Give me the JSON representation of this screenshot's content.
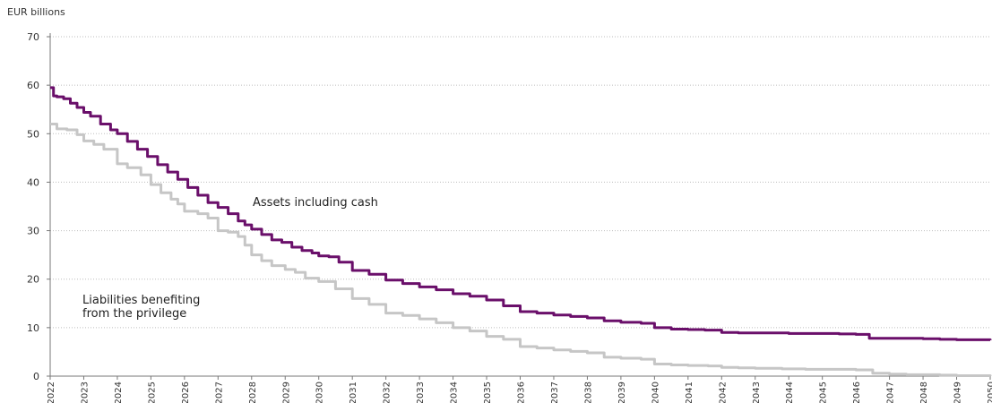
{
  "chart_data": {
    "type": "line",
    "title": "",
    "unit_label": "EUR billions",
    "xlabel": "",
    "ylabel": "",
    "ylim": [
      0,
      70
    ],
    "yticks": [
      0,
      10,
      20,
      30,
      40,
      50,
      60,
      70
    ],
    "xlim": [
      2022,
      2050
    ],
    "xticks": [
      "2022",
      "2023",
      "2024",
      "2025",
      "2026",
      "2027",
      "2028",
      "2029",
      "2030",
      "2031",
      "2032",
      "2033",
      "2034",
      "2035",
      "2036",
      "2037",
      "2038",
      "2039",
      "2040",
      "2041",
      "2042",
      "2043",
      "2044",
      "2045",
      "2046",
      "2047",
      "2048",
      "2049",
      "2050"
    ],
    "grid": "horizontal-dotted",
    "legend": "none",
    "series": [
      {
        "name": "Assets including cash",
        "color": "#6a0f6a",
        "x": [
          2022.0,
          2022.1,
          2022.2,
          2022.4,
          2022.6,
          2022.8,
          2023.0,
          2023.2,
          2023.5,
          2023.8,
          2024.0,
          2024.3,
          2024.6,
          2024.9,
          2025.2,
          2025.5,
          2025.8,
          2026.1,
          2026.4,
          2026.7,
          2027.0,
          2027.3,
          2027.6,
          2027.8,
          2028.0,
          2028.3,
          2028.6,
          2028.9,
          2029.2,
          2029.5,
          2029.8,
          2030.0,
          2030.3,
          2030.6,
          2031.0,
          2031.5,
          2032.0,
          2032.5,
          2033.0,
          2033.5,
          2034.0,
          2034.5,
          2035.0,
          2035.5,
          2036.0,
          2036.5,
          2037.0,
          2037.5,
          2038.0,
          2038.5,
          2039.0,
          2039.6,
          2040.0,
          2040.5,
          2041.0,
          2041.5,
          2042.0,
          2042.5,
          2043.0,
          2044.0,
          2045.0,
          2045.5,
          2046.0,
          2046.4,
          2047.0,
          2048.0,
          2048.5,
          2049.0,
          2050.0
        ],
        "y": [
          59.5,
          57.8,
          57.6,
          57.2,
          56.3,
          55.4,
          54.4,
          53.6,
          52.0,
          50.8,
          50.0,
          48.4,
          46.8,
          45.3,
          43.6,
          42.1,
          40.6,
          38.9,
          37.3,
          35.8,
          34.8,
          33.5,
          32.0,
          31.2,
          30.3,
          29.2,
          28.1,
          27.6,
          26.6,
          25.9,
          25.4,
          24.8,
          24.6,
          23.5,
          21.8,
          21.0,
          19.8,
          19.1,
          18.4,
          17.8,
          17.0,
          16.5,
          15.7,
          14.5,
          13.3,
          13.0,
          12.6,
          12.3,
          12.0,
          11.4,
          11.1,
          10.9,
          10.0,
          9.7,
          9.6,
          9.5,
          9.0,
          8.9,
          8.9,
          8.8,
          8.8,
          8.7,
          8.6,
          7.8,
          7.8,
          7.7,
          7.6,
          7.5,
          7.4
        ]
      },
      {
        "name": "Liabilities benefiting from the privilege",
        "color": "#c6c6c6",
        "x": [
          2022.0,
          2022.2,
          2022.5,
          2022.8,
          2023.0,
          2023.3,
          2023.6,
          2024.0,
          2024.3,
          2024.7,
          2025.0,
          2025.3,
          2025.6,
          2025.8,
          2026.0,
          2026.4,
          2026.7,
          2027.0,
          2027.3,
          2027.6,
          2027.8,
          2028.0,
          2028.3,
          2028.6,
          2029.0,
          2029.3,
          2029.6,
          2030.0,
          2030.5,
          2031.0,
          2031.5,
          2032.0,
          2032.5,
          2033.0,
          2033.5,
          2034.0,
          2034.5,
          2035.0,
          2035.5,
          2036.0,
          2036.5,
          2037.0,
          2037.5,
          2038.0,
          2038.5,
          2039.0,
          2039.6,
          2040.0,
          2040.5,
          2041.0,
          2041.6,
          2042.0,
          2042.5,
          2043.0,
          2043.8,
          2044.5,
          2045.5,
          2046.0,
          2046.5,
          2047.0,
          2047.5,
          2048.0,
          2048.5,
          2049.0,
          2050.0
        ],
        "y": [
          52.0,
          51.0,
          50.8,
          49.8,
          48.5,
          47.8,
          46.8,
          43.8,
          43.0,
          41.5,
          39.5,
          37.8,
          36.5,
          35.5,
          34.0,
          33.5,
          32.6,
          30.0,
          29.7,
          28.8,
          27.0,
          25.0,
          23.8,
          22.8,
          22.0,
          21.4,
          20.2,
          19.5,
          18.0,
          16.0,
          14.8,
          13.0,
          12.5,
          11.8,
          11.0,
          10.0,
          9.3,
          8.2,
          7.6,
          6.1,
          5.8,
          5.4,
          5.1,
          4.8,
          3.9,
          3.7,
          3.5,
          2.5,
          2.3,
          2.2,
          2.1,
          1.8,
          1.7,
          1.6,
          1.5,
          1.4,
          1.4,
          1.3,
          0.6,
          0.4,
          0.3,
          0.3,
          0.2,
          0.1,
          0.0
        ]
      }
    ],
    "annotations": [
      {
        "text": "Assets including cash",
        "series": 0
      },
      {
        "text": "Liabilities benefiting",
        "series": 1
      },
      {
        "text": "from the privilege",
        "series": 1
      }
    ]
  }
}
